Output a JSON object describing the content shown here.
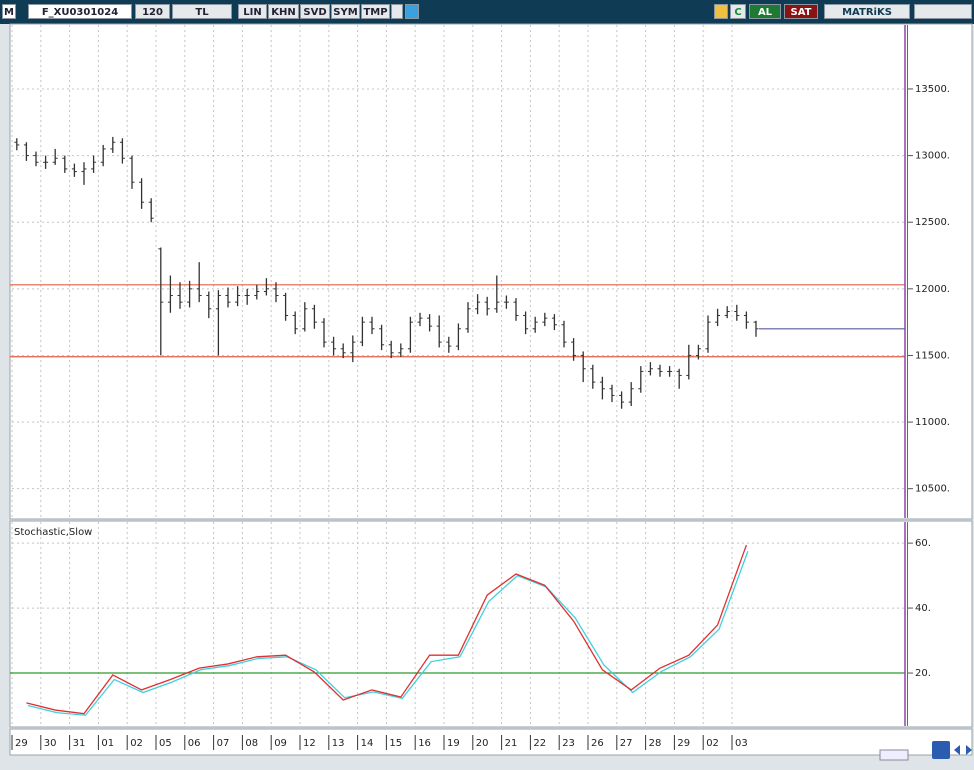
{
  "toolbar": {
    "logo": "M",
    "symbol": "F_XU0301024",
    "period": "120",
    "currency": "TL",
    "buttons": [
      "LIN",
      "KHN",
      "SVD",
      "SYM",
      "TMP"
    ],
    "c_button": "C",
    "buy": "AL",
    "sell": "SAT",
    "brand": "MATRiKS"
  },
  "chart_data": [
    {
      "type": "ohlc",
      "color": "#333333",
      "categories": [
        "29",
        "30",
        "31",
        "01",
        "02",
        "05",
        "06",
        "07",
        "08",
        "09",
        "12",
        "13",
        "14",
        "15",
        "16",
        "19",
        "20",
        "21",
        "22",
        "23",
        "26",
        "27",
        "28",
        "29",
        "02",
        "03"
      ],
      "open": [
        13100,
        13080,
        13000,
        12950,
        12950,
        12980,
        12900,
        12880,
        12900,
        12950,
        13050,
        13100,
        12980,
        12800,
        12650,
        12300,
        11900,
        11950,
        11900,
        12000,
        11950,
        11850,
        11950,
        11900,
        11950,
        11950,
        11980,
        12000,
        11950,
        11800,
        11700,
        11850,
        11750,
        11600,
        11550,
        11520,
        11600,
        11750,
        11700,
        11580,
        11520,
        11550,
        11750,
        11780,
        11720,
        11600,
        11570,
        11700,
        11850,
        11900,
        11850,
        11900,
        11900,
        11800,
        11700,
        11750,
        11780,
        11730,
        11600,
        11500,
        11400,
        11300,
        11250,
        11200,
        11150,
        11250,
        11380,
        11400,
        11380,
        11380,
        11350,
        11500,
        11550,
        11750,
        11800,
        11830,
        11800,
        11750
      ],
      "high": [
        13130,
        13100,
        13030,
        13000,
        13050,
        13000,
        12940,
        12950,
        13000,
        13080,
        13140,
        13130,
        13000,
        12830,
        12680,
        12310,
        12100,
        12050,
        12060,
        12200,
        11980,
        11990,
        12010,
        12020,
        12000,
        12030,
        12080,
        12050,
        11970,
        11830,
        11900,
        11880,
        11780,
        11640,
        11590,
        11650,
        11790,
        11790,
        11730,
        11610,
        11590,
        11790,
        11820,
        11810,
        11800,
        11640,
        11740,
        11900,
        11960,
        11940,
        12100,
        11950,
        11930,
        11830,
        11790,
        11820,
        11810,
        11760,
        11630,
        11530,
        11430,
        11340,
        11280,
        11230,
        11300,
        11420,
        11450,
        11430,
        11420,
        11400,
        11580,
        11580,
        11800,
        11850,
        11870,
        11880,
        11830,
        11760
      ],
      "low": [
        13040,
        12960,
        12920,
        12900,
        12930,
        12870,
        12840,
        12780,
        12870,
        12920,
        13020,
        12940,
        12750,
        12600,
        12500,
        11500,
        11820,
        11850,
        11860,
        11900,
        11780,
        11500,
        11860,
        11870,
        11880,
        11920,
        11950,
        11900,
        11760,
        11660,
        11680,
        11700,
        11560,
        11500,
        11480,
        11450,
        11570,
        11660,
        11540,
        11480,
        11490,
        11520,
        11720,
        11680,
        11560,
        11520,
        11540,
        11670,
        11810,
        11800,
        11820,
        11850,
        11760,
        11660,
        11670,
        11720,
        11690,
        11560,
        11460,
        11300,
        11250,
        11170,
        11150,
        11100,
        11120,
        11220,
        11350,
        11340,
        11340,
        11250,
        11320,
        11470,
        11520,
        11720,
        11780,
        11760,
        11700,
        11640
      ],
      "close": [
        13080,
        13000,
        12950,
        12950,
        12980,
        12900,
        12880,
        12900,
        12950,
        13050,
        13100,
        12980,
        12800,
        12650,
        12530,
        11900,
        11950,
        11900,
        12000,
        11950,
        11850,
        11950,
        11900,
        11950,
        11950,
        11980,
        12000,
        11950,
        11800,
        11700,
        11850,
        11750,
        11600,
        11550,
        11520,
        11600,
        11750,
        11700,
        11580,
        11520,
        11550,
        11750,
        11780,
        11720,
        11600,
        11570,
        11700,
        11850,
        11900,
        11850,
        11900,
        11900,
        11800,
        11700,
        11750,
        11780,
        11730,
        11600,
        11500,
        11400,
        11300,
        11250,
        11200,
        11150,
        11250,
        11380,
        11400,
        11380,
        11380,
        11350,
        11500,
        11550,
        11750,
        11800,
        11830,
        11800,
        11750,
        11700
      ],
      "ylim": [
        10280,
        13980
      ],
      "yticks": [
        {
          "value": 10500,
          "label": "10500."
        },
        {
          "value": 11000,
          "label": "11000."
        },
        {
          "value": 11500,
          "label": "11500."
        },
        {
          "value": 12000,
          "label": "12000."
        },
        {
          "value": 12500,
          "label": "12500."
        },
        {
          "value": 13000,
          "label": "13000."
        },
        {
          "value": 13500,
          "label": "13500."
        }
      ],
      "reference_lines": [
        {
          "value": 12030,
          "color": "#e0604a"
        },
        {
          "value": 11490,
          "color": "#e0604a"
        }
      ],
      "last_price_color": "#5a5aa0",
      "grid": true
    },
    {
      "type": "line",
      "title": "Stochastic,Slow",
      "series": [
        {
          "color": "#e03030",
          "values": [
            10.8,
            8.6,
            7.5,
            19.4,
            14.8,
            18,
            21.5,
            22.8,
            25,
            25.5,
            20.3,
            11.7,
            14.8,
            12.6,
            25.5,
            25.5,
            44,
            50.5,
            47,
            36,
            21,
            14.8,
            21.5,
            25.5,
            34.8,
            59.4
          ]
        },
        {
          "color": "#40d0e0",
          "values": [
            10,
            7.8,
            7,
            18,
            14,
            17.2,
            21,
            22.3,
            24.5,
            25,
            21,
            12.4,
            14.2,
            12.2,
            23.5,
            25,
            42,
            50,
            46.5,
            37,
            22.5,
            14,
            20.5,
            25,
            33.5,
            57.5
          ]
        }
      ],
      "ylim": [
        4,
        66.5
      ],
      "yticks": [
        {
          "value": 20,
          "label": "20."
        },
        {
          "value": 40,
          "label": "40."
        },
        {
          "value": 60,
          "label": "60."
        }
      ],
      "reference_lines": [
        {
          "value": 20,
          "color": "#2e9a2e"
        }
      ],
      "grid": true
    }
  ]
}
